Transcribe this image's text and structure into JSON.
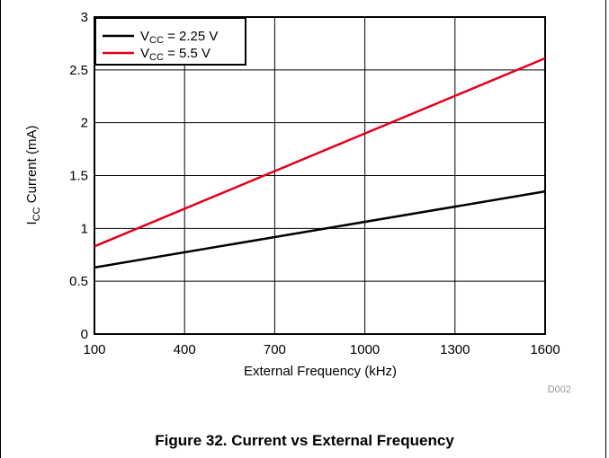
{
  "chart_data": {
    "type": "line",
    "xlabel": "External Frequency (kHz)",
    "ylabel": {
      "main": "I",
      "sub": "CC",
      "rest": " Current (mA)"
    },
    "x_ticks": [
      "100",
      "400",
      "700",
      "1000",
      "1300",
      "1600"
    ],
    "y_ticks": [
      "0",
      "0.5",
      "1",
      "1.5",
      "2",
      "2.5",
      "3"
    ],
    "xlim": [
      100,
      1600
    ],
    "ylim": [
      0,
      3
    ],
    "grid": true,
    "legend_position": "top-left",
    "series": [
      {
        "name_main": "V",
        "name_sub": "CC",
        "name_rest": " = 2.25 V",
        "color": "#000000",
        "x": [
          100,
          1600
        ],
        "y": [
          0.63,
          1.35
        ]
      },
      {
        "name_main": "V",
        "name_sub": "CC",
        "name_rest": " = 5.5 V",
        "color": "#e0001b",
        "x": [
          100,
          1600
        ],
        "y": [
          0.83,
          2.61
        ]
      }
    ],
    "watermark": "D002"
  },
  "caption": "Figure 32. Current vs External Frequency"
}
